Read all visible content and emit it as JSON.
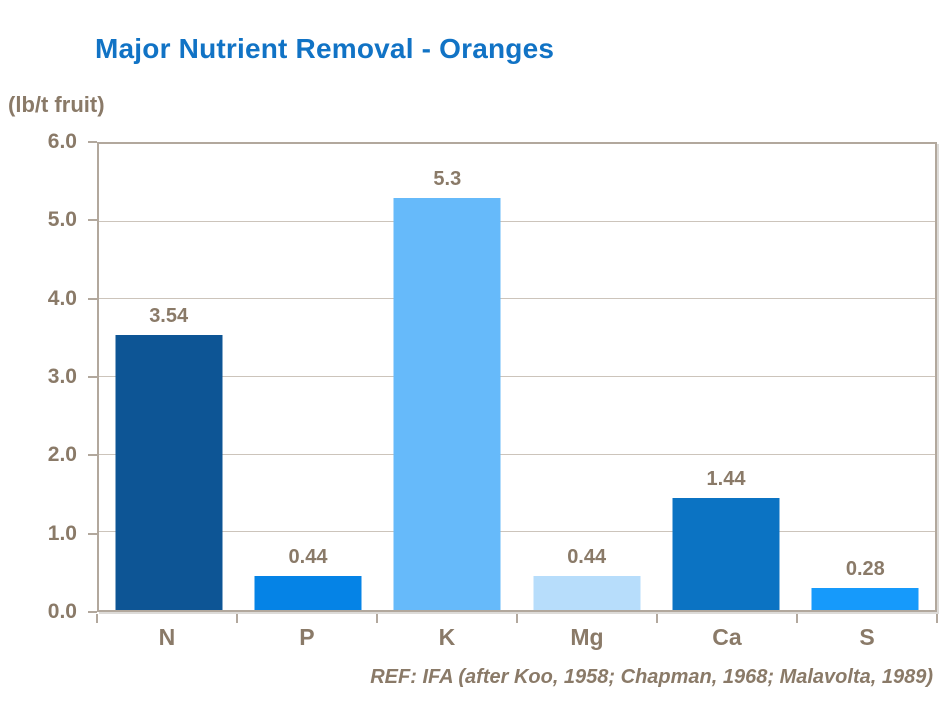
{
  "page": {
    "background": "#ffffff"
  },
  "header": {
    "title": "Major Nutrient Removal - Oranges",
    "title_color": "#1173C5"
  },
  "chart_data": {
    "type": "bar",
    "title": "Major Nutrient Removal - Oranges",
    "unit_label": "(lb/t fruit)",
    "categories": [
      "N",
      "P",
      "K",
      "Mg",
      "Ca",
      "S"
    ],
    "values": [
      3.54,
      0.44,
      5.3,
      0.44,
      1.44,
      0.28
    ],
    "value_labels": [
      "3.54",
      "0.44",
      "5.3",
      "0.44",
      "1.44",
      "0.28"
    ],
    "bar_colors": [
      "#0D5595",
      "#0583E6",
      "#66BAFA",
      "#B7DDFB",
      "#0B73C3",
      "#169AFB"
    ],
    "ylim": [
      0,
      6
    ],
    "ytick_values": [
      6,
      5,
      4,
      3,
      2,
      1,
      0
    ],
    "ytick_labels": [
      "6.0",
      "5.0",
      "4.0",
      "3.0",
      "2.0",
      "1.0",
      "0.0"
    ],
    "grid": true,
    "legend": false,
    "footnote": "REF: IFA (after Koo, 1958; Chapman, 1968; Malavolta, 1989)",
    "text_color": "#8A7A68",
    "grid_color": "#CCC4BB",
    "axis_color": "#B2A89D"
  }
}
